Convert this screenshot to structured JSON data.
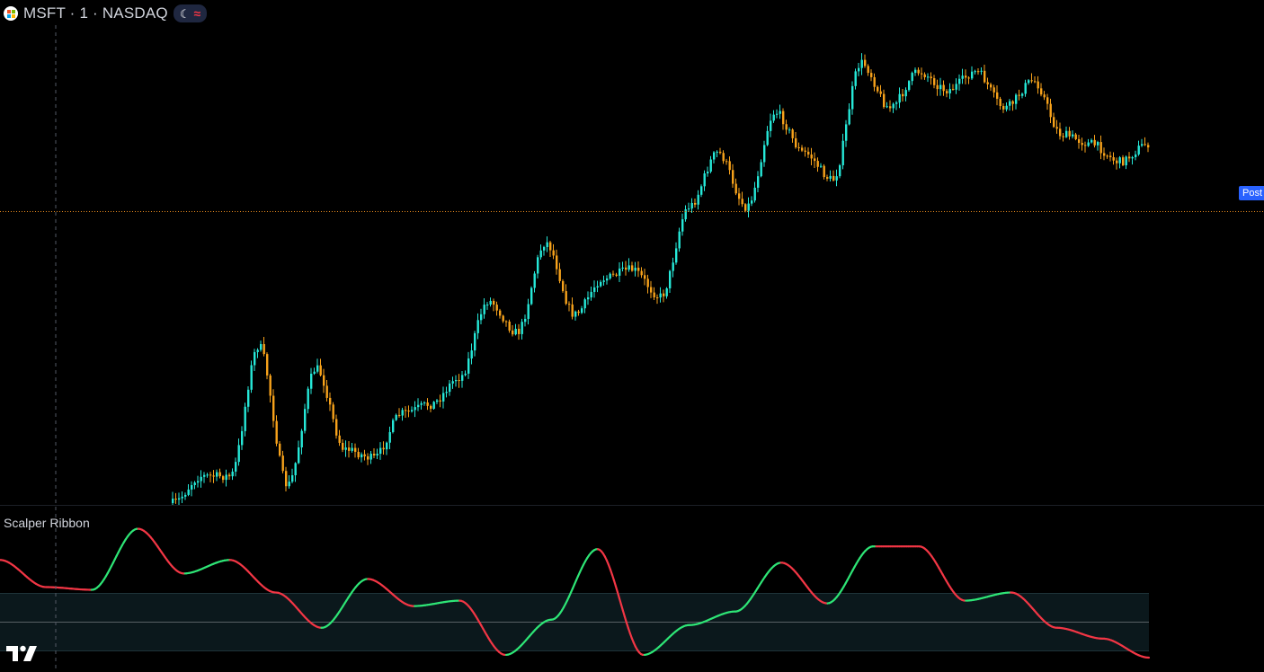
{
  "header": {
    "symbol_title": "MSFT · 1 · NASDAQ",
    "session_icon": "moon-icon",
    "extended_hours_icon": "wave-icon",
    "logo_icon": "microsoft-logo-icon"
  },
  "price_pane": {
    "last_price_label": "Post",
    "up_color": "#26e8d8",
    "down_color": "#f7a21b",
    "price_line_color": "#e8891c",
    "post_label_color": "#2962ff"
  },
  "indicator_pane": {
    "title": "Scalper Ribbon",
    "rising_color": "#2ee576",
    "falling_color": "#f23645"
  },
  "branding": {
    "logo_icon": "tradingview-logo-icon"
  },
  "chart_data": {
    "type": "candlestick",
    "symbol": "MSFT",
    "interval": "1",
    "exchange": "NASDAQ",
    "price_trend_keypoints": [
      0.0,
      0.06,
      0.06,
      0.35,
      0.04,
      0.3,
      0.12,
      0.1,
      0.2,
      0.22,
      0.28,
      0.45,
      0.38,
      0.58,
      0.42,
      0.5,
      0.52,
      0.46,
      0.66,
      0.78,
      0.66,
      0.87,
      0.78,
      0.72,
      0.98,
      0.88,
      0.96,
      0.92,
      0.96,
      0.88,
      0.94,
      0.82,
      0.8,
      0.76,
      0.8
    ],
    "oscillator_keypoints": [
      0.72,
      0.52,
      0.5,
      0.95,
      0.62,
      0.72,
      0.48,
      0.22,
      0.58,
      0.38,
      0.42,
      0.02,
      0.28,
      0.8,
      0.02,
      0.24,
      0.34,
      0.7,
      0.4,
      0.82,
      0.82,
      0.42,
      0.48,
      0.22,
      0.14,
      0.0
    ]
  }
}
